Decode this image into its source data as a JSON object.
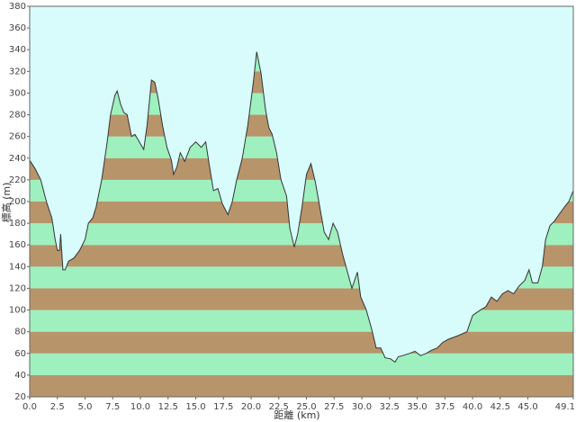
{
  "chart_data": {
    "type": "area",
    "x_label": "距離 (km)",
    "y_label": "標高 (m)",
    "xlim": [
      0,
      49.1
    ],
    "ylim": [
      20,
      380
    ],
    "xticks": [
      {
        "value": 0,
        "label": "0.0"
      },
      2.5,
      {
        "value": 5,
        "label": "5.0"
      },
      7.5,
      {
        "value": 10,
        "label": "10.0"
      },
      12.5,
      {
        "value": 15,
        "label": "15.0"
      },
      17.5,
      {
        "value": 20,
        "label": "20.0"
      },
      22.5,
      {
        "value": 25,
        "label": "25.0"
      },
      27.5,
      {
        "value": 30,
        "label": "30.0"
      },
      32.5,
      {
        "value": 35,
        "label": "35.0"
      },
      37.5,
      {
        "value": 40,
        "label": "40.0"
      },
      42.5,
      {
        "value": 45,
        "label": "45.0"
      },
      49.1
    ],
    "yticks": [
      20,
      40,
      60,
      80,
      100,
      120,
      140,
      160,
      180,
      200,
      220,
      240,
      260,
      280,
      300,
      320,
      340,
      360,
      380
    ],
    "background": "#d8fcfc",
    "band_colors": [
      "#b8946a",
      "#9ef0be"
    ],
    "line_color": "#333333",
    "x": [
      0,
      0.5,
      1,
      1.5,
      2,
      2.3,
      2.5,
      2.7,
      2.8,
      3,
      3.2,
      3.5,
      4,
      4.5,
      5,
      5.3,
      5.7,
      6,
      6.5,
      7,
      7.3,
      7.7,
      7.9,
      8.2,
      8.5,
      8.8,
      9.2,
      9.5,
      9.9,
      10.3,
      10.6,
      11,
      11.3,
      11.6,
      12,
      12.4,
      12.8,
      13,
      13.3,
      13.6,
      14,
      14.5,
      15,
      15.5,
      15.9,
      16.2,
      16.6,
      17,
      17.4,
      17.9,
      18.3,
      18.7,
      19.2,
      19.7,
      20.2,
      20.5,
      20.9,
      21.3,
      21.6,
      21.9,
      22.3,
      22.7,
      23.2,
      23.5,
      23.9,
      24.2,
      24.6,
      25,
      25.4,
      25.8,
      26.2,
      26.6,
      27,
      27.4,
      27.8,
      28.3,
      28.7,
      29.1,
      29.6,
      29.9,
      30.4,
      30.9,
      31.3,
      31.7,
      32.1,
      32.6,
      33,
      33.3,
      33.7,
      34.3,
      34.8,
      35.3,
      35.8,
      36.3,
      36.8,
      37.3,
      37.8,
      38.6,
      39.5,
      40,
      40.7,
      41.2,
      41.7,
      42.2,
      42.7,
      43.2,
      43.7,
      44.2,
      44.7,
      45.1,
      45.4,
      45.9,
      46.3,
      46.6,
      47,
      47.4,
      47.8,
      48.3,
      48.7,
      49.1
    ],
    "values": [
      238,
      230,
      220,
      200,
      185,
      165,
      155,
      155,
      170,
      137,
      137,
      145,
      148,
      155,
      165,
      180,
      185,
      195,
      220,
      255,
      280,
      298,
      302,
      290,
      282,
      280,
      260,
      262,
      255,
      248,
      270,
      312,
      310,
      295,
      270,
      250,
      238,
      225,
      232,
      245,
      237,
      250,
      255,
      250,
      255,
      235,
      210,
      212,
      198,
      188,
      200,
      220,
      240,
      270,
      310,
      338,
      318,
      285,
      268,
      262,
      245,
      220,
      205,
      175,
      158,
      170,
      195,
      225,
      235,
      218,
      195,
      172,
      165,
      180,
      172,
      150,
      135,
      120,
      135,
      112,
      100,
      82,
      65,
      65,
      56,
      55,
      52,
      57,
      58,
      60,
      62,
      58,
      60,
      63,
      65,
      70,
      73,
      76,
      80,
      95,
      100,
      103,
      112,
      108,
      115,
      118,
      115,
      122,
      127,
      137,
      125,
      125,
      140,
      165,
      178,
      182,
      188,
      195,
      200,
      210
    ]
  }
}
